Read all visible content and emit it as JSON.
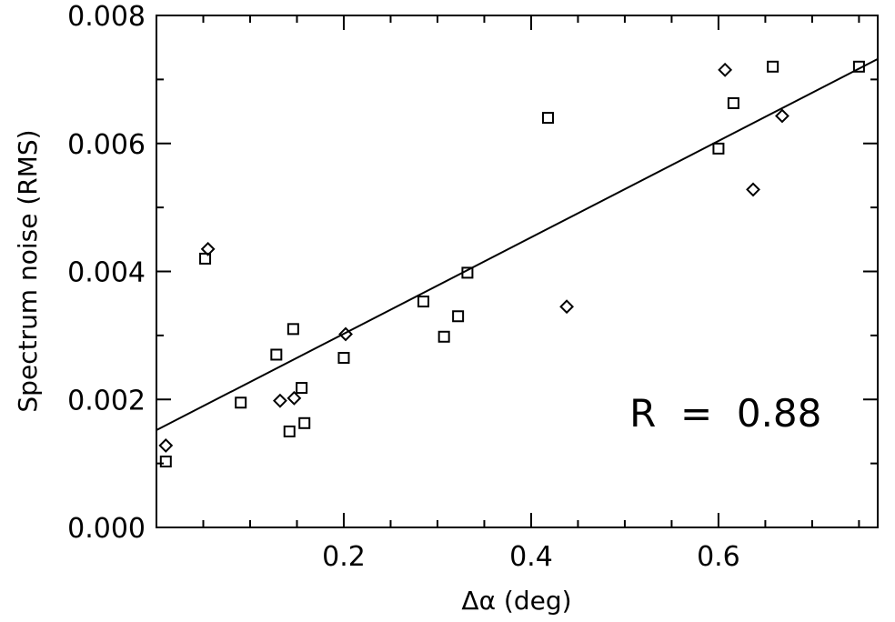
{
  "chart_data": {
    "type": "scatter",
    "title": "",
    "xlabel": "Δα (deg)",
    "ylabel": "Spectrum noise (RMS)",
    "xlim": [
      0.0,
      0.77
    ],
    "ylim": [
      0.0,
      0.008
    ],
    "x_ticks": [
      0.2,
      0.4,
      0.6
    ],
    "x_tick_labels": [
      "0.2",
      "0.4",
      "0.6"
    ],
    "x_minor_ticks": [
      0.05,
      0.1,
      0.15,
      0.25,
      0.3,
      0.35,
      0.45,
      0.5,
      0.55,
      0.65,
      0.7,
      0.75
    ],
    "y_ticks": [
      0.0,
      0.002,
      0.004,
      0.006,
      0.008
    ],
    "y_tick_labels": [
      "0.000",
      "0.002",
      "0.004",
      "0.006",
      "0.008"
    ],
    "y_minor_ticks": [
      0.001,
      0.003,
      0.005,
      0.007
    ],
    "grid": false,
    "series": [
      {
        "marker": "square",
        "points": [
          {
            "x": 0.01,
            "y": 0.00103
          },
          {
            "x": 0.052,
            "y": 0.0042
          },
          {
            "x": 0.09,
            "y": 0.00195
          },
          {
            "x": 0.128,
            "y": 0.0027
          },
          {
            "x": 0.142,
            "y": 0.0015
          },
          {
            "x": 0.146,
            "y": 0.0031
          },
          {
            "x": 0.155,
            "y": 0.00218
          },
          {
            "x": 0.158,
            "y": 0.00163
          },
          {
            "x": 0.2,
            "y": 0.00265
          },
          {
            "x": 0.285,
            "y": 0.00353
          },
          {
            "x": 0.307,
            "y": 0.00298
          },
          {
            "x": 0.322,
            "y": 0.0033
          },
          {
            "x": 0.332,
            "y": 0.00398
          },
          {
            "x": 0.418,
            "y": 0.0064
          },
          {
            "x": 0.6,
            "y": 0.00592
          },
          {
            "x": 0.616,
            "y": 0.00663
          },
          {
            "x": 0.658,
            "y": 0.0072
          },
          {
            "x": 0.75,
            "y": 0.0072
          }
        ]
      },
      {
        "marker": "diamond",
        "points": [
          {
            "x": 0.01,
            "y": 0.00128
          },
          {
            "x": 0.055,
            "y": 0.00435
          },
          {
            "x": 0.132,
            "y": 0.00198
          },
          {
            "x": 0.147,
            "y": 0.00202
          },
          {
            "x": 0.202,
            "y": 0.00302
          },
          {
            "x": 0.438,
            "y": 0.00345
          },
          {
            "x": 0.607,
            "y": 0.00715
          },
          {
            "x": 0.637,
            "y": 0.00528
          },
          {
            "x": 0.668,
            "y": 0.00643
          }
        ]
      }
    ],
    "fit_line": {
      "x": [
        0.0,
        0.77
      ],
      "y": [
        0.00152,
        0.00732
      ]
    },
    "annotations": [
      {
        "text": "R  =  0.88",
        "x": 0.505,
        "y": 0.00158
      }
    ]
  }
}
